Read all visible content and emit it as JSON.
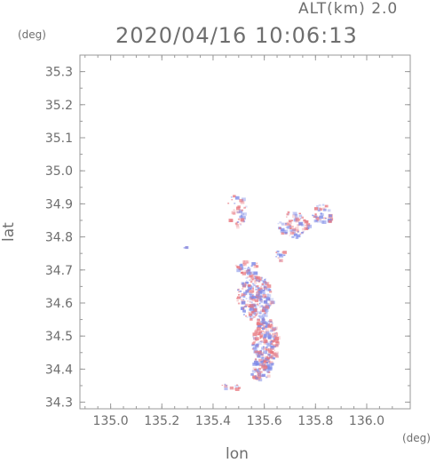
{
  "header": {
    "altitude": "ALT(km) 2.0",
    "timestamp": "2020/04/16 10:06:13"
  },
  "axes": {
    "y_unit": "(deg)",
    "x_unit": "(deg)",
    "y_label": "lat",
    "x_label": "lon",
    "x_range": [
      134.88,
      136.17
    ],
    "y_range": [
      34.28,
      35.35
    ],
    "x_ticks": [
      "135.0",
      "135.2",
      "135.4",
      "135.6",
      "135.8",
      "136.0"
    ],
    "y_ticks": [
      "35.3",
      "35.2",
      "35.1",
      "35.0",
      "34.9",
      "34.8",
      "34.7",
      "34.6",
      "34.5",
      "34.4",
      "34.3"
    ]
  },
  "colors": {
    "positive": "#e8777f",
    "negative": "#7f8ce8",
    "frame": "#9a9a9a"
  }
}
